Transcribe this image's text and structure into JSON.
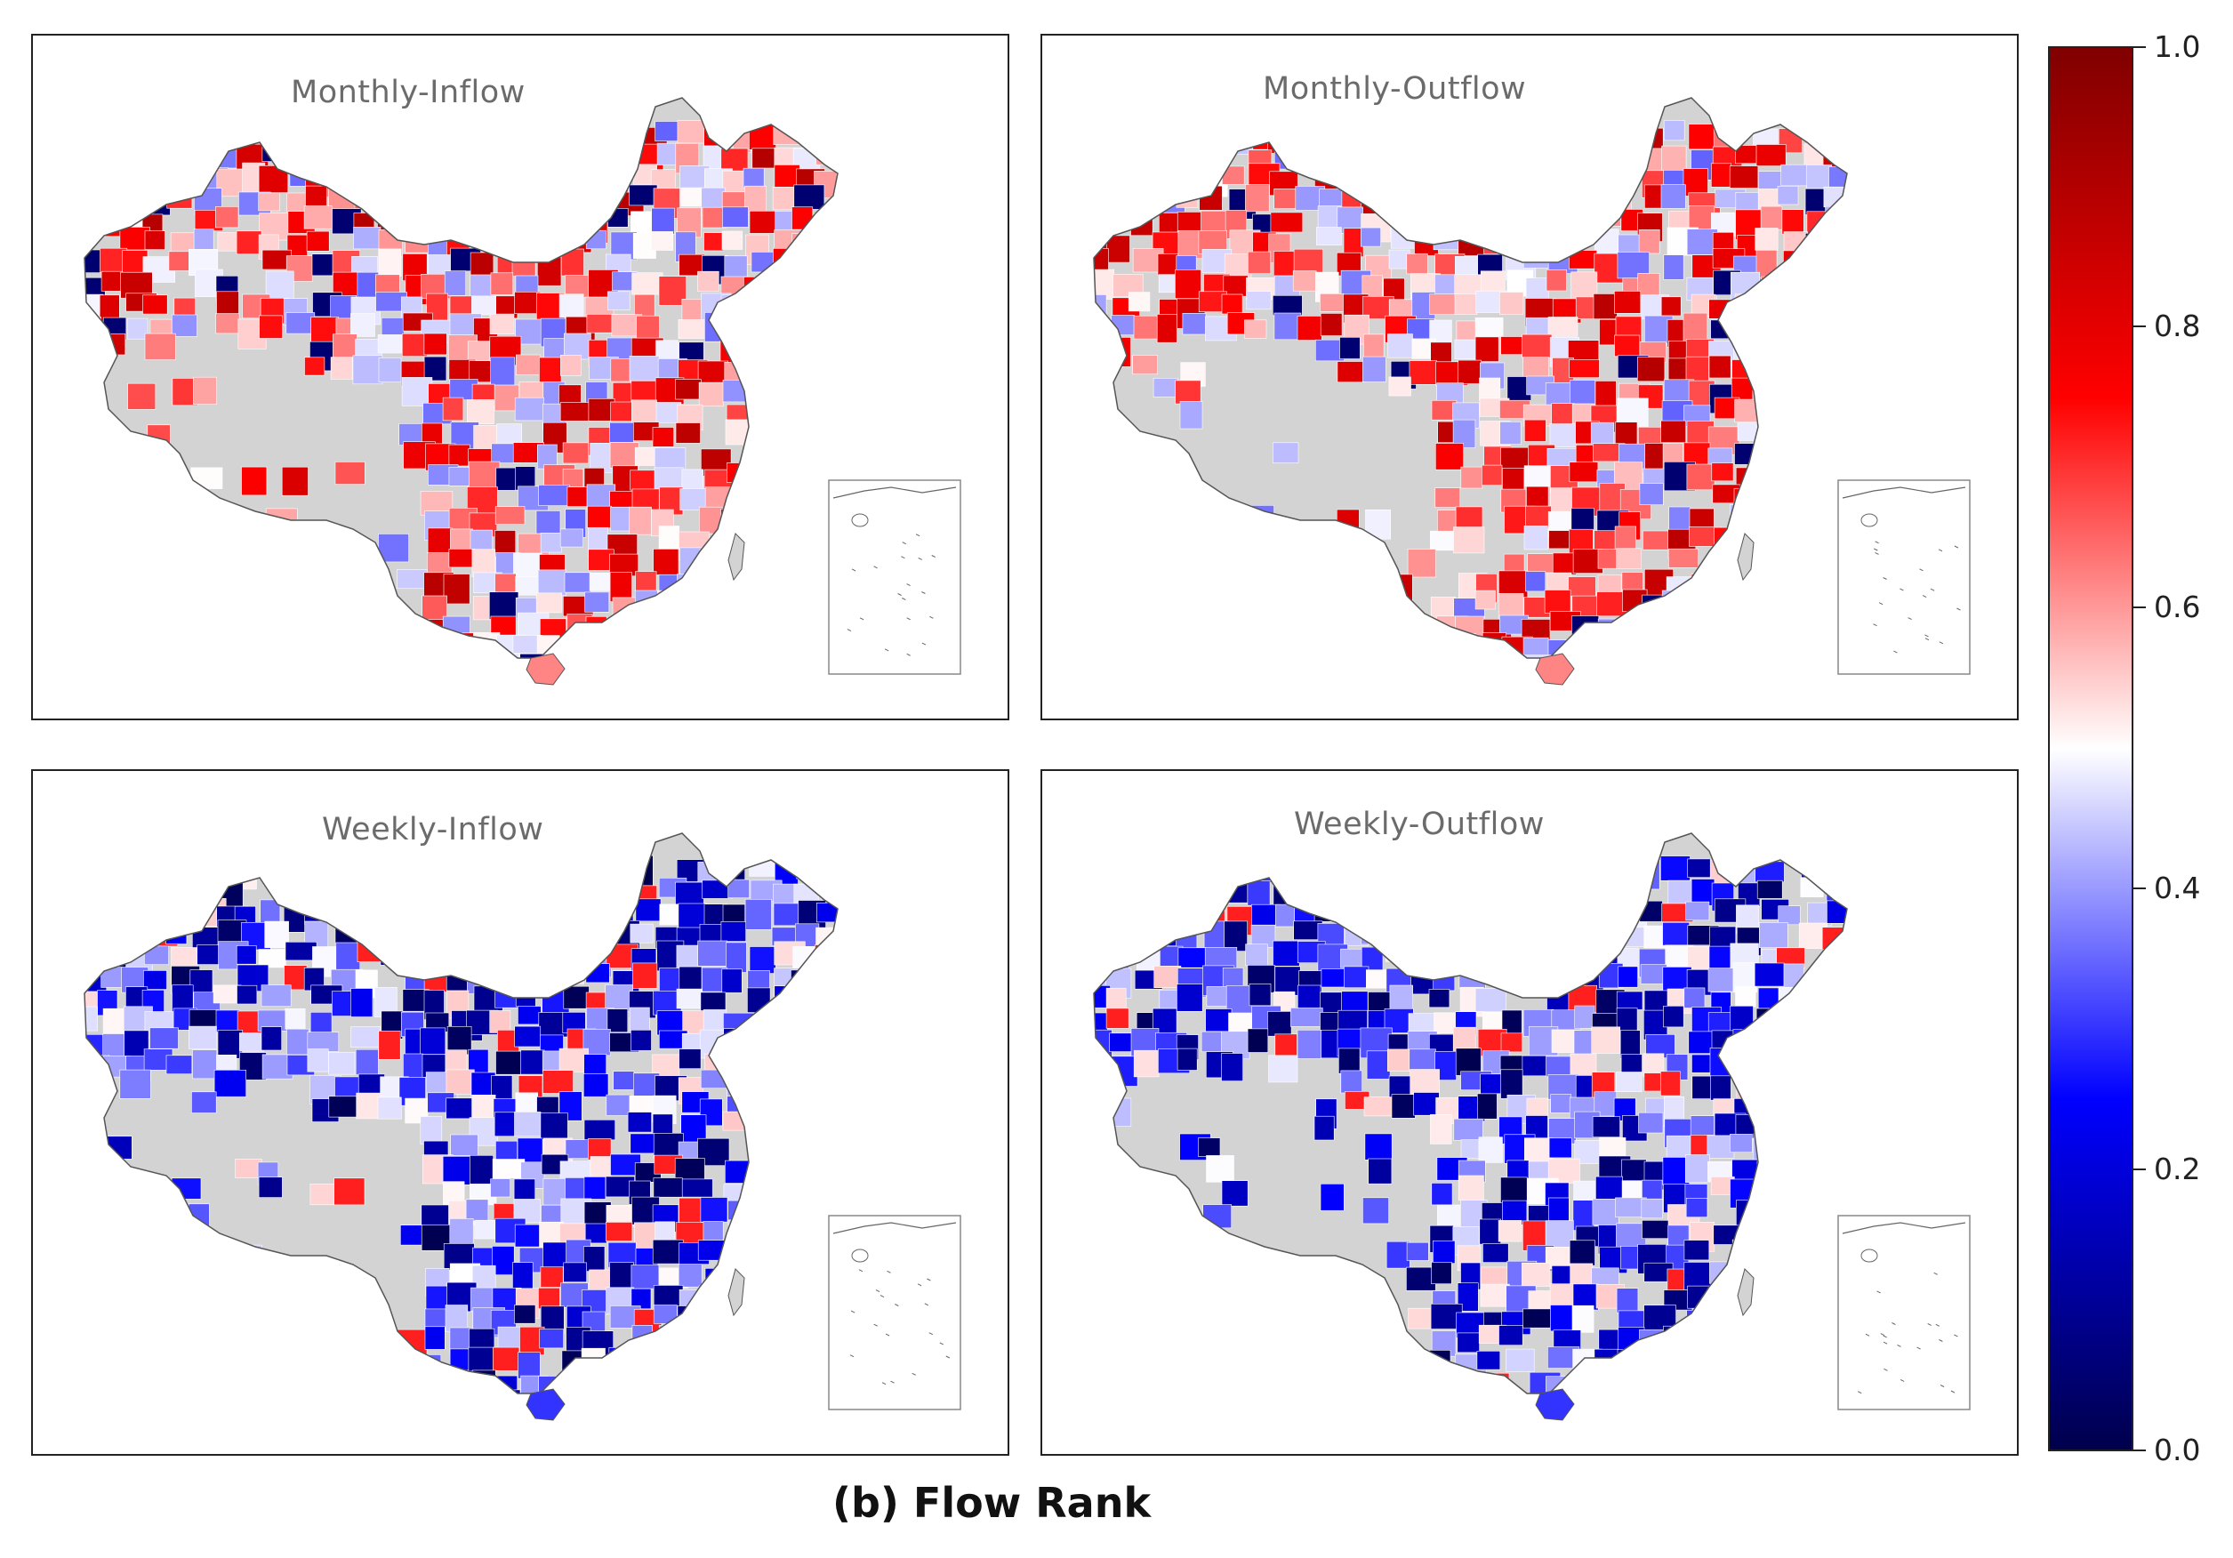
{
  "figure": {
    "caption": "(b) Flow Rank"
  },
  "panels": [
    {
      "title": "Monthly-Inflow",
      "dominant_tone": "red"
    },
    {
      "title": "Monthly-Outflow",
      "dominant_tone": "red"
    },
    {
      "title": "Weekly-Inflow",
      "dominant_tone": "blue"
    },
    {
      "title": "Weekly-Outflow",
      "dominant_tone": "blue"
    }
  ],
  "colorbar": {
    "colormap": "seismic",
    "min": 0.0,
    "max": 1.0,
    "ticks": [
      "0.0",
      "0.2",
      "0.4",
      "0.6",
      "0.8",
      "1.0"
    ],
    "colors": {
      "low": "#00004c",
      "mid": "#ffffff",
      "high": "#800000"
    }
  },
  "map": {
    "no_data_color": "#d3d3d3",
    "border_color": "#555555",
    "inset": "south-china-sea"
  }
}
